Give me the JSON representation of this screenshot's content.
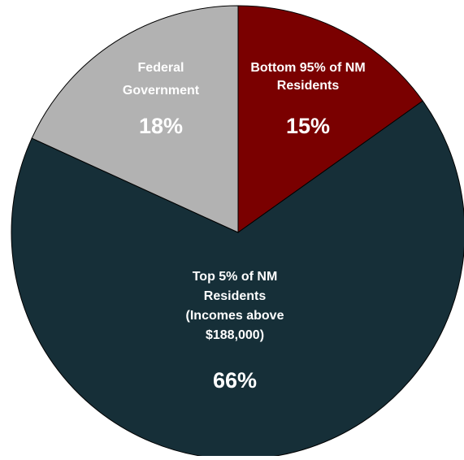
{
  "chart_data": {
    "type": "pie",
    "title": "",
    "slices": [
      {
        "label_lines": [
          "Bottom 95% of NM",
          "Residents"
        ],
        "value": 15,
        "value_label": "15%",
        "color": "#7a0000"
      },
      {
        "label_lines": [
          "Top 5% of NM",
          "Residents",
          "(Incomes above",
          "$188,000)"
        ],
        "value": 66,
        "value_label": "66%",
        "color": "#162f38"
      },
      {
        "label_lines": [
          "Federal",
          "Government"
        ],
        "value": 18,
        "value_label": "18%",
        "color": "#b2b2b2"
      }
    ],
    "start_angle_deg": 0,
    "direction": "clockwise",
    "legend": "none",
    "slice_border_color": "#000000"
  }
}
